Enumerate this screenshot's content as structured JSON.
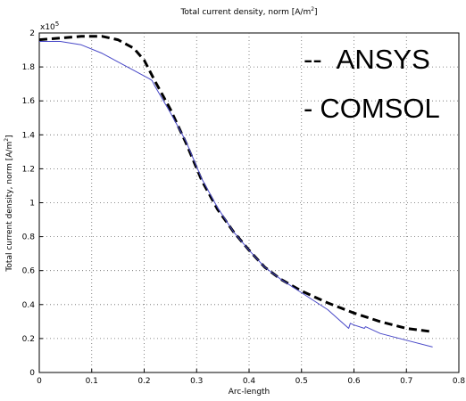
{
  "chart_data": {
    "type": "line",
    "title": "Total current density, norm [A/m",
    "title_sup": "2",
    "title_end": "]",
    "xlabel": "Arc-length",
    "ylabel": "Total current density, norm [A/m",
    "ylabel_sup": "2",
    "ylabel_end": "]",
    "scale_label": "x10",
    "scale_exp": "5",
    "xlim": [
      0,
      0.8
    ],
    "ylim": [
      0,
      2
    ],
    "x_ticks": [
      "0",
      "0.1",
      "0.2",
      "0.3",
      "0.4",
      "0.5",
      "0.6",
      "0.7",
      "0.8"
    ],
    "y_ticks": [
      "0",
      "0.2",
      "0.4",
      "0.6",
      "0.8",
      "1",
      "1.2",
      "1.4",
      "1.6",
      "1.8",
      "2"
    ],
    "grid": true,
    "legend": [
      {
        "marker": "--",
        "label": "ANSYS"
      },
      {
        "marker": "-",
        "label": "COMSOL"
      }
    ],
    "series": [
      {
        "name": "ANSYS",
        "style": "dashed",
        "color": "#000000",
        "x": [
          0,
          0.04,
          0.08,
          0.12,
          0.15,
          0.18,
          0.2,
          0.22,
          0.25,
          0.28,
          0.31,
          0.34,
          0.37,
          0.4,
          0.43,
          0.46,
          0.5,
          0.55,
          0.6,
          0.65,
          0.7,
          0.75
        ],
        "y": [
          1.96,
          1.97,
          1.98,
          1.98,
          1.96,
          1.91,
          1.84,
          1.72,
          1.55,
          1.35,
          1.13,
          0.96,
          0.83,
          0.72,
          0.62,
          0.55,
          0.48,
          0.41,
          0.35,
          0.3,
          0.26,
          0.24
        ]
      },
      {
        "name": "COMSOL",
        "style": "solid",
        "color": "#4848c8",
        "x": [
          0,
          0.04,
          0.08,
          0.12,
          0.15,
          0.18,
          0.21,
          0.215,
          0.22,
          0.25,
          0.28,
          0.31,
          0.34,
          0.37,
          0.4,
          0.43,
          0.46,
          0.5,
          0.55,
          0.59,
          0.593,
          0.6,
          0.62,
          0.622,
          0.65,
          0.7,
          0.75
        ],
        "y": [
          1.95,
          1.95,
          1.93,
          1.88,
          1.83,
          1.78,
          1.73,
          1.72,
          1.69,
          1.53,
          1.36,
          1.14,
          0.97,
          0.83,
          0.72,
          0.62,
          0.55,
          0.47,
          0.37,
          0.26,
          0.29,
          0.28,
          0.26,
          0.27,
          0.23,
          0.19,
          0.15
        ]
      }
    ]
  }
}
